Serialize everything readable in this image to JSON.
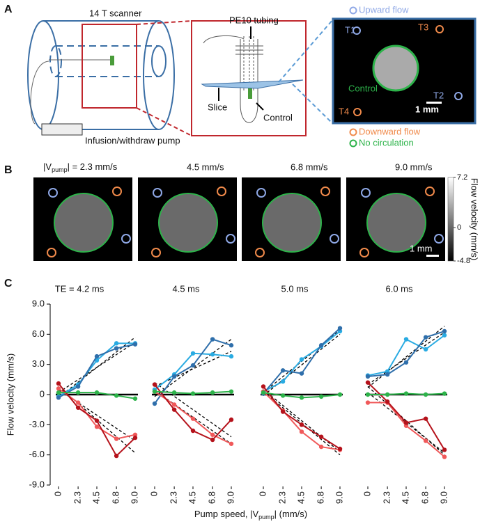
{
  "panel_a": {
    "label": "A",
    "scanner": "14 T scanner",
    "pump": "Infusion/withdraw pump",
    "tubing": "PE10 tubing",
    "slice": "Slice",
    "control": "Control",
    "image_labels": [
      "T1",
      "T2",
      "T3",
      "T4"
    ],
    "image_control": "Control",
    "scale_bar": "1 mm",
    "legend": [
      {
        "label": "Upward flow",
        "color": "#8fa8e6"
      },
      {
        "label": "Downward flow",
        "color": "#f08a4b"
      },
      {
        "label": "No circulation",
        "color": "#2db34a"
      }
    ]
  },
  "panel_b": {
    "label": "B",
    "first_title": {
      "main": "|V",
      "sub": "pump",
      "rest": "| = 2.3 mm/s"
    },
    "titles": [
      "4.5 mm/s",
      "6.8 mm/s",
      "9.0 mm/s"
    ],
    "colorbar": {
      "label": "Flow velocity (mm/s)",
      "lim": [
        -4.8,
        7.2
      ],
      "ticks": [
        7.2,
        0,
        -4.8
      ]
    },
    "scale_bar": "1 mm"
  },
  "panel_c": {
    "label": "C",
    "y_label": "Flow velocity (mm/s)",
    "x_label": {
      "main": "Pump speed, |V",
      "sub": "pump",
      "rest": "| (mm/s)"
    }
  },
  "chart_data": [
    {
      "type": "line",
      "title": "TE = 4.2 ms",
      "x": [
        0,
        2.3,
        4.5,
        6.8,
        9.0
      ],
      "xlim": [
        0,
        9
      ],
      "xticks": [
        0,
        2.3,
        4.5,
        6.8,
        {
          "value": 9,
          "label": "9.0"
        }
      ],
      "ylim": [
        -9,
        9
      ],
      "yticks": [
        {
          "value": 9,
          "label": "9.0"
        },
        {
          "value": 6,
          "label": "6.0"
        },
        {
          "value": 3,
          "label": "3.0"
        },
        0,
        {
          "value": -3,
          "label": "-3.0"
        },
        {
          "value": -6,
          "label": "-6.0"
        },
        {
          "value": -9,
          "label": "-9.0"
        }
      ],
      "zero_line": true,
      "series": [
        {
          "name": "T1",
          "color": "#29abe2",
          "values": [
            -0.2,
            1.0,
            3.4,
            5.1,
            5.1
          ]
        },
        {
          "name": "T2",
          "color": "#2f6fab",
          "values": [
            -0.3,
            0.8,
            3.8,
            4.6,
            5.0
          ]
        },
        {
          "name": "T3",
          "color": "#f0595a",
          "values": [
            0.6,
            -0.8,
            -3.2,
            -4.4,
            -4.0
          ]
        },
        {
          "name": "T4",
          "color": "#b5121b",
          "values": [
            1.1,
            -1.3,
            -2.6,
            -6.1,
            -4.3
          ]
        },
        {
          "name": "Control",
          "color": "#2db34a",
          "values": [
            0.2,
            0.2,
            0.2,
            -0.1,
            -0.4
          ]
        }
      ],
      "fits": [
        {
          "x": [
            0,
            9
          ],
          "values": [
            -0.3,
            5.7
          ]
        },
        {
          "x": [
            0,
            9
          ],
          "values": [
            0.2,
            5.2
          ]
        },
        {
          "x": [
            0,
            9
          ],
          "values": [
            0.8,
            -5.8
          ]
        },
        {
          "x": [
            0,
            9
          ],
          "values": [
            0.5,
            -4.6
          ]
        }
      ]
    },
    {
      "type": "line",
      "title": "4.5 ms",
      "x": [
        0,
        2.3,
        4.5,
        6.8,
        9.0
      ],
      "xlim": [
        0,
        9
      ],
      "xticks": [
        0,
        2.3,
        4.5,
        6.8,
        {
          "value": 9,
          "label": "9.0"
        }
      ],
      "ylim": [
        -9,
        9
      ],
      "zero_line": true,
      "series": [
        {
          "name": "T1",
          "color": "#29abe2",
          "values": [
            0.5,
            2.0,
            4.1,
            4.0,
            3.8
          ]
        },
        {
          "name": "T2",
          "color": "#2f6fab",
          "values": [
            -0.9,
            1.8,
            2.9,
            5.5,
            4.9
          ]
        },
        {
          "name": "T3",
          "color": "#f0595a",
          "values": [
            0.3,
            -1.0,
            -2.4,
            -4.0,
            -4.9
          ]
        },
        {
          "name": "T4",
          "color": "#b5121b",
          "values": [
            1.0,
            -1.5,
            -3.6,
            -4.5,
            -2.5
          ]
        },
        {
          "name": "Control",
          "color": "#2db34a",
          "values": [
            0.3,
            0.2,
            0.1,
            0.2,
            0.3
          ]
        }
      ],
      "fits": [
        {
          "x": [
            0,
            9
          ],
          "values": [
            -0.2,
            5.5
          ]
        },
        {
          "x": [
            0,
            9
          ],
          "values": [
            0.8,
            4.3
          ]
        },
        {
          "x": [
            0,
            9
          ],
          "values": [
            1.2,
            -4.2
          ]
        },
        {
          "x": [
            0,
            9
          ],
          "values": [
            0.4,
            -4.9
          ]
        }
      ]
    },
    {
      "type": "line",
      "title": "5.0 ms",
      "x": [
        0,
        2.3,
        4.5,
        6.8,
        9.0
      ],
      "xlim": [
        0,
        9
      ],
      "xticks": [
        0,
        2.3,
        4.5,
        6.8,
        {
          "value": 9,
          "label": "9.0"
        }
      ],
      "ylim": [
        -9,
        9
      ],
      "zero_line": true,
      "series": [
        {
          "name": "T1",
          "color": "#29abe2",
          "values": [
            0.3,
            1.3,
            3.5,
            4.8,
            6.3
          ]
        },
        {
          "name": "T2",
          "color": "#2f6fab",
          "values": [
            0.1,
            2.4,
            2.1,
            4.9,
            6.6
          ]
        },
        {
          "name": "T3",
          "color": "#f0595a",
          "values": [
            0.3,
            -1.6,
            -3.7,
            -5.2,
            -5.5
          ]
        },
        {
          "name": "T4",
          "color": "#b5121b",
          "values": [
            0.8,
            -1.7,
            -3.0,
            -4.2,
            -5.4
          ]
        },
        {
          "name": "Control",
          "color": "#2db34a",
          "values": [
            0.2,
            -0.1,
            -0.3,
            -0.2,
            0
          ]
        }
      ],
      "fits": [
        {
          "x": [
            0,
            9
          ],
          "values": [
            0.2,
            6.4
          ]
        },
        {
          "x": [
            0,
            9
          ],
          "values": [
            -0.1,
            6.0
          ]
        },
        {
          "x": [
            0,
            9
          ],
          "values": [
            0.5,
            -5.7
          ]
        },
        {
          "x": [
            0,
            9
          ],
          "values": [
            0.3,
            -6.0
          ]
        }
      ]
    },
    {
      "type": "line",
      "title": "6.0 ms",
      "x": [
        0,
        2.3,
        4.5,
        6.8,
        9.0
      ],
      "xlim": [
        0,
        9
      ],
      "xticks": [
        0,
        2.3,
        4.5,
        6.8,
        {
          "value": 9,
          "label": "9.0"
        }
      ],
      "ylim": [
        -9,
        9
      ],
      "zero_line": true,
      "series": [
        {
          "name": "T1",
          "color": "#29abe2",
          "values": [
            1.9,
            2.3,
            5.5,
            4.5,
            5.9
          ]
        },
        {
          "name": "T2",
          "color": "#2f6fab",
          "values": [
            1.8,
            2.0,
            3.2,
            5.7,
            6.3
          ]
        },
        {
          "name": "T3",
          "color": "#f0595a",
          "values": [
            -0.8,
            -0.8,
            -3.1,
            -4.6,
            -6.2
          ]
        },
        {
          "name": "T4",
          "color": "#b5121b",
          "values": [
            1.2,
            -0.7,
            -2.8,
            -2.4,
            -5.5
          ]
        },
        {
          "name": "Control",
          "color": "#2db34a",
          "values": [
            0,
            0,
            0.1,
            0,
            0.1
          ]
        }
      ],
      "fits": [
        {
          "x": [
            0,
            9
          ],
          "values": [
            0.7,
            6.8
          ]
        },
        {
          "x": [
            0,
            9
          ],
          "values": [
            1.0,
            6.2
          ]
        },
        {
          "x": [
            0,
            9
          ],
          "values": [
            0.8,
            -6.0
          ]
        },
        {
          "x": [
            0,
            9
          ],
          "values": [
            0.2,
            -5.8
          ]
        }
      ]
    }
  ]
}
